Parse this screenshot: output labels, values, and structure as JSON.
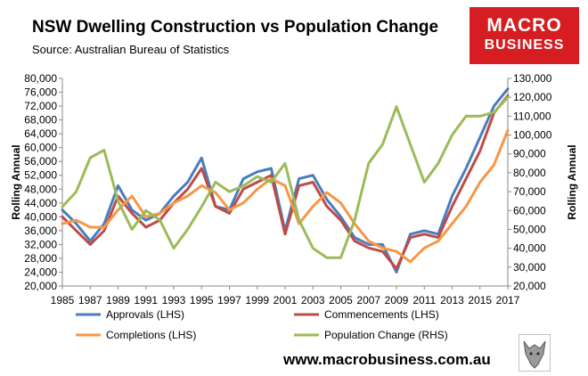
{
  "title": "NSW Dwelling Construction vs Population Change",
  "subtitle": "Source: Australian Bureau of Statistics",
  "logo": {
    "line1": "MACRO",
    "line2": "BUSINESS",
    "color": "#d51d22"
  },
  "website": "www.macrobusiness.com.au",
  "chart_data": {
    "type": "line",
    "x": [
      1985,
      1986,
      1987,
      1988,
      1989,
      1990,
      1991,
      1992,
      1993,
      1994,
      1995,
      1996,
      1997,
      1998,
      1999,
      2000,
      2001,
      2002,
      2003,
      2004,
      2005,
      2006,
      2007,
      2008,
      2009,
      2010,
      2011,
      2012,
      2013,
      2014,
      2015,
      2016,
      2017
    ],
    "series": [
      {
        "name": "Approvals (LHS)",
        "axis": "left",
        "color": "#4a7ebb",
        "values": [
          42000,
          38000,
          33000,
          38000,
          49000,
          42000,
          39000,
          41000,
          46000,
          50000,
          57000,
          43000,
          42000,
          51000,
          53000,
          54000,
          36000,
          51000,
          52000,
          45000,
          40000,
          34000,
          32000,
          32000,
          24000,
          35000,
          36000,
          35000,
          46000,
          54000,
          63000,
          72000,
          77000
        ]
      },
      {
        "name": "Commencements (LHS)",
        "axis": "left",
        "color": "#be4b48",
        "values": [
          40000,
          36000,
          32000,
          36000,
          46000,
          41000,
          37000,
          39000,
          44000,
          48000,
          54000,
          43000,
          41000,
          48000,
          50000,
          52000,
          35000,
          49000,
          50000,
          43000,
          39000,
          33000,
          31000,
          30000,
          25000,
          34000,
          35000,
          34000,
          43000,
          51000,
          59000,
          70000,
          75000
        ]
      },
      {
        "name": "Completions (LHS)",
        "axis": "left",
        "color": "#f79646",
        "values": [
          38000,
          39000,
          37000,
          37000,
          42000,
          46000,
          40000,
          41000,
          44000,
          46000,
          49000,
          47000,
          42000,
          44000,
          48000,
          51000,
          49000,
          38000,
          43000,
          47000,
          44000,
          38000,
          33000,
          31000,
          30000,
          27000,
          31000,
          33000,
          38000,
          43000,
          50000,
          55000,
          65000
        ]
      },
      {
        "name": "Population Change (RHS)",
        "axis": "right",
        "color": "#9bbb59",
        "values": [
          62000,
          70000,
          88000,
          92000,
          65000,
          50000,
          60000,
          55000,
          40000,
          50000,
          62000,
          75000,
          70000,
          73000,
          78000,
          75000,
          85000,
          55000,
          40000,
          35000,
          35000,
          55000,
          85000,
          95000,
          115000,
          95000,
          75000,
          85000,
          100000,
          110000,
          110000,
          112000,
          120000
        ]
      }
    ],
    "ylabel": "Rolling Annual",
    "y2label": "Rolling Annual",
    "ylim": [
      20000,
      80000
    ],
    "y2lim": [
      20000,
      130000
    ],
    "yticks": [
      "20,000",
      "24,000",
      "28,000",
      "32,000",
      "36,000",
      "40,000",
      "44,000",
      "48,000",
      "52,000",
      "56,000",
      "60,000",
      "64,000",
      "68,000",
      "72,000",
      "76,000",
      "80,000"
    ],
    "y2ticks": [
      "20,000",
      "30,000",
      "40,000",
      "50,000",
      "60,000",
      "70,000",
      "80,000",
      "90,000",
      "100,000",
      "110,000",
      "120,000",
      "130,000"
    ],
    "xticks": [
      "1985",
      "1987",
      "1989",
      "1991",
      "1993",
      "1995",
      "1997",
      "1999",
      "2001",
      "2003",
      "2005",
      "2007",
      "2009",
      "2011",
      "2013",
      "2015",
      "2017"
    ],
    "grid": false,
    "legend": "bottom"
  }
}
